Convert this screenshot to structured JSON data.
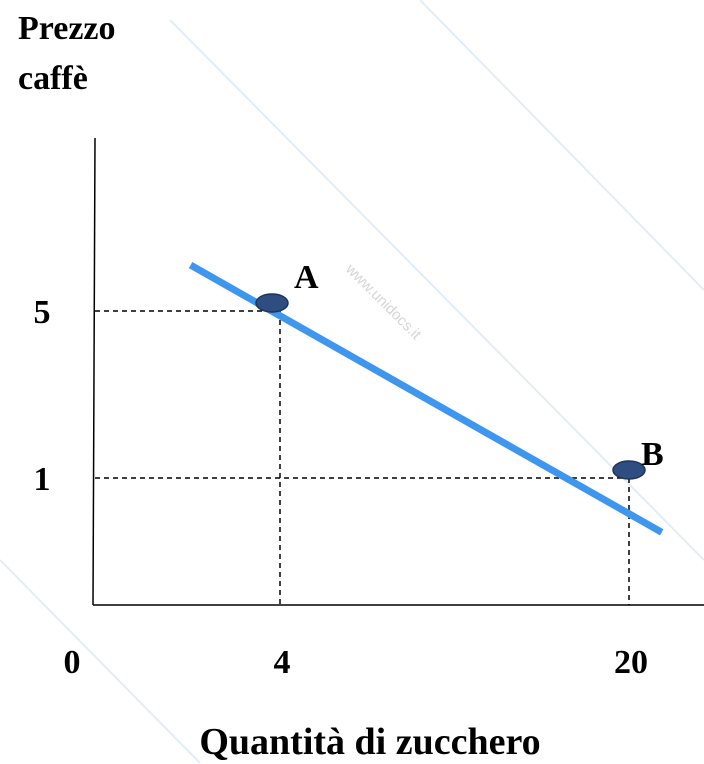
{
  "chart_data": {
    "type": "line",
    "title": "",
    "ylabel_lines": [
      "Prezzo",
      "caffè"
    ],
    "xlabel": "Quantità di zucchero",
    "origin_label": "0",
    "x_ticks": [
      {
        "value": 4,
        "label": "4"
      },
      {
        "value": 20,
        "label": "20"
      }
    ],
    "y_ticks": [
      {
        "value": 5,
        "label": "5"
      },
      {
        "value": 1,
        "label": "1"
      }
    ],
    "series": [
      {
        "color": "#3f96ef",
        "x": [
          -0.1,
          21.5
        ],
        "y": [
          6.1,
          -0.3
        ]
      }
    ],
    "points": [
      {
        "label": "A",
        "x": 4,
        "y": 5,
        "fill": "#2e4d80"
      },
      {
        "label": "B",
        "x": 20,
        "y": 1,
        "fill": "#2e4d80"
      }
    ],
    "guidelines": "dashed",
    "grid": false,
    "watermark": "www.unidocs.it"
  }
}
